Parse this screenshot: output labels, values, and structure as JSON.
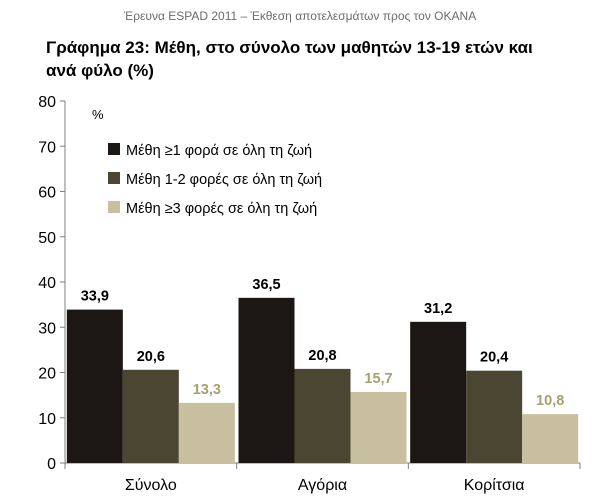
{
  "header": {
    "text": "Έρευνα ESPAD 2011 – Έκθεση αποτελεσμάτων προς τον ΟΚΑΝΑ"
  },
  "chart_data": {
    "type": "bar",
    "title": "Γράφημα 23: Μέθη, στο σύνολο των μαθητών 13-19 ετών και ανά φύλο (%)",
    "unit_label": "%",
    "ylim": [
      0,
      80
    ],
    "yticks": [
      0,
      10,
      20,
      30,
      40,
      50,
      60,
      70,
      80
    ],
    "categories": [
      "Σύνολο",
      "Αγόρια",
      "Κορίτσια"
    ],
    "series": [
      {
        "name": "Μέθη ≥1 φορά σε όλη τη ζωή",
        "color": "#1c1714",
        "label_color": "#000000",
        "values": [
          33.9,
          36.5,
          31.2
        ]
      },
      {
        "name": "Μέθη 1-2 φορές σε όλη τη ζωή",
        "color": "#4b4632",
        "label_color": "#000000",
        "values": [
          20.6,
          20.8,
          20.4
        ]
      },
      {
        "name": "Μέθη ≥3 φορές σε όλη τη ζωή",
        "color": "#c8bf9e",
        "label_color": "#a8a070",
        "values": [
          13.3,
          15.7,
          10.8
        ]
      }
    ],
    "legend_position": "top-left",
    "grid": false
  }
}
